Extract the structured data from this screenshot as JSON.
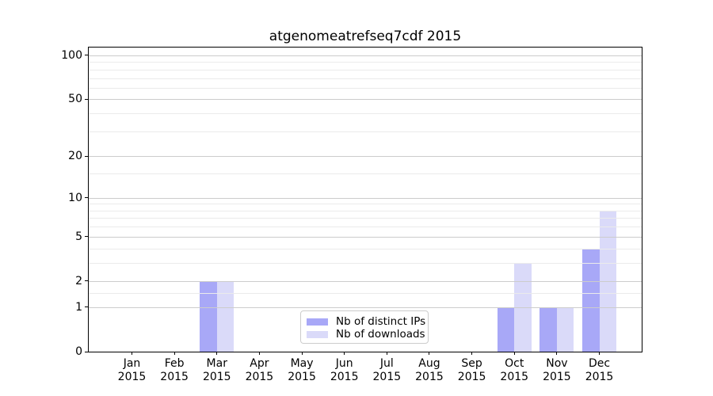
{
  "title": "atgenomeatrefseq7cdf 2015",
  "chart_data": {
    "type": "bar",
    "title": "atgenomeatrefseq7cdf 2015",
    "categories": [
      "Jan",
      "Feb",
      "Mar",
      "Apr",
      "May",
      "Jun",
      "Jul",
      "Aug",
      "Sep",
      "Oct",
      "Nov",
      "Dec"
    ],
    "category_year": "2015",
    "series": [
      {
        "name": "Nb of distinct IPs",
        "color": "#a8a8f7",
        "values": [
          0,
          0,
          2,
          0,
          0,
          0,
          0,
          0,
          0,
          1,
          1,
          4
        ]
      },
      {
        "name": "Nb of downloads",
        "color": "#dadaf9",
        "values": [
          0,
          0,
          2,
          0,
          0,
          0,
          0,
          0,
          0,
          3,
          1,
          8
        ]
      }
    ],
    "y_scale": "log10(1+x)",
    "y_major_ticks": [
      0,
      1,
      2,
      5,
      10,
      20,
      50,
      100
    ],
    "y_minor_ticks": [
      1.5,
      3,
      4,
      6,
      7,
      8,
      9,
      15,
      30,
      40,
      60,
      70,
      80,
      90
    ],
    "ylim": [
      0,
      113
    ],
    "grid": "horizontal",
    "legend_position": "inside-bottom-center"
  },
  "colors": {
    "major_grid": "#cccccc",
    "minor_grid": "#ebebeb",
    "spine": "#000000",
    "legend_border": "#cccccc",
    "background": "#ffffff",
    "text": "#000000"
  }
}
